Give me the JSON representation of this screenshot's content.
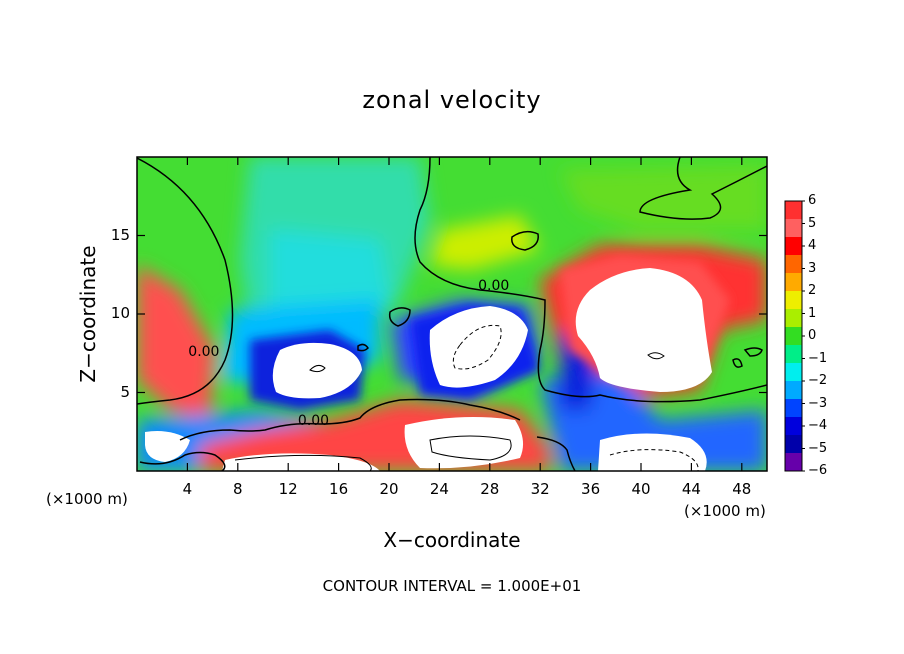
{
  "chart_data": {
    "type": "heatmap",
    "title": "zonal velocity",
    "xlabel": "X−coordinate",
    "ylabel": "Z−coordinate",
    "x_unit_left": "(×1000 m)",
    "x_unit_right": "(×1000 m)",
    "xlim": [
      0,
      50
    ],
    "ylim": [
      0,
      20
    ],
    "x_ticks": [
      "4",
      "8",
      "12",
      "16",
      "20",
      "24",
      "28",
      "32",
      "36",
      "40",
      "44",
      "48"
    ],
    "x_tick_values": [
      4,
      8,
      12,
      16,
      20,
      24,
      28,
      32,
      36,
      40,
      44,
      48
    ],
    "y_ticks": [
      "5",
      "10",
      "15"
    ],
    "y_tick_values": [
      5,
      10,
      15
    ],
    "colorbar": {
      "ticks": [
        "6",
        "5",
        "4",
        "3",
        "2",
        "1",
        "0",
        "−1",
        "−2",
        "−3",
        "−4",
        "−5",
        "−6"
      ],
      "values": [
        6,
        5,
        4,
        3,
        2,
        1,
        0,
        -1,
        -2,
        -3,
        -4,
        -5,
        -6
      ],
      "colors": [
        "#ff3030",
        "#ff6060",
        "#ff0000",
        "#ff6600",
        "#ffaa00",
        "#eeee00",
        "#aaee00",
        "#33dd22",
        "#00ee88",
        "#00eeee",
        "#00aaff",
        "#0044ff",
        "#0000dd",
        "#0000aa",
        "#6600aa"
      ],
      "overflow_color": "#ffffff"
    },
    "contour_labels": [
      {
        "text": "0.00",
        "x": 5.5,
        "y": 7.5
      },
      {
        "text": "0.00",
        "x": 28.5,
        "y": 11.7
      },
      {
        "text": "0.00",
        "x": 14.2,
        "y": 3.1
      }
    ],
    "footer": "CONTOUR INTERVAL = 1.000E+01"
  }
}
